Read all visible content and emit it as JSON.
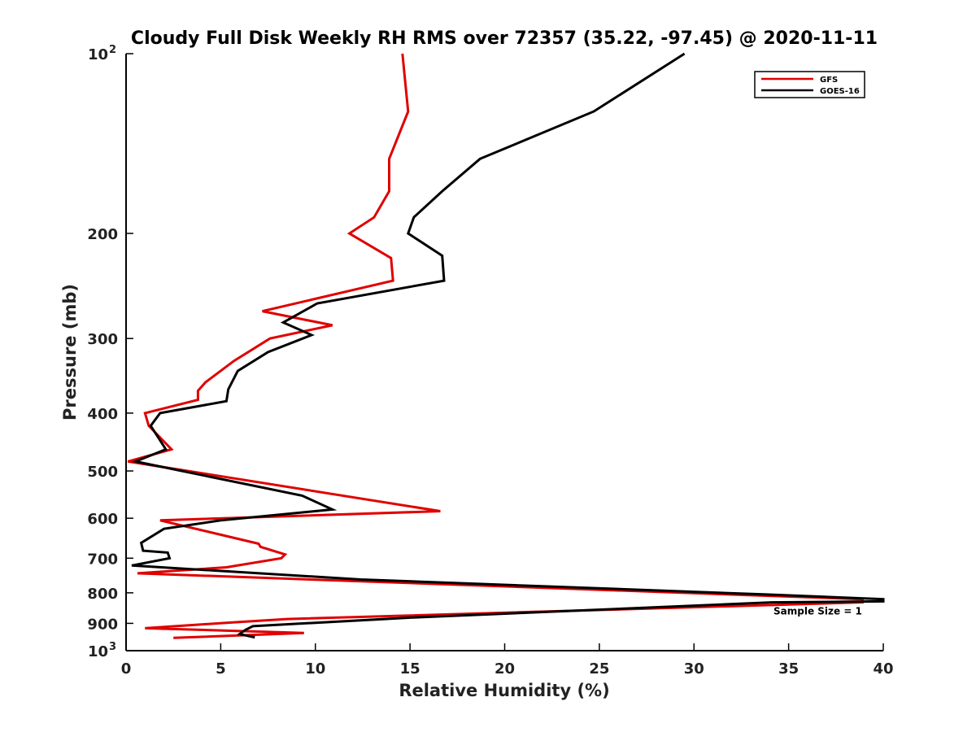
{
  "chart_data": {
    "type": "line",
    "title": "Cloudy Full Disk Weekly RH RMS over 72357 (35.22, -97.45) @ 2020-11-11",
    "xlabel": "Relative Humidity (%)",
    "ylabel": "Pressure (mb)",
    "xlim": [
      0,
      40
    ],
    "ylim": [
      100,
      1000
    ],
    "y_scale": "log",
    "y_reversed": true,
    "grid": false,
    "legend_position": "top-right",
    "x_ticks": [
      "0",
      "5",
      "10",
      "15",
      "20",
      "25",
      "30",
      "35",
      "40"
    ],
    "x_tick_values": [
      0,
      5,
      10,
      15,
      20,
      25,
      30,
      35,
      40
    ],
    "y_ticks": [
      {
        "value": 100,
        "label": "10",
        "exp": "2"
      },
      {
        "value": 200,
        "label": "200",
        "exp": ""
      },
      {
        "value": 300,
        "label": "300",
        "exp": ""
      },
      {
        "value": 400,
        "label": "400",
        "exp": ""
      },
      {
        "value": 500,
        "label": "500",
        "exp": ""
      },
      {
        "value": 600,
        "label": "600",
        "exp": ""
      },
      {
        "value": 700,
        "label": "700",
        "exp": ""
      },
      {
        "value": 800,
        "label": "800",
        "exp": ""
      },
      {
        "value": 900,
        "label": "900",
        "exp": ""
      },
      {
        "value": 1000,
        "label": "10",
        "exp": "3"
      }
    ],
    "series": [
      {
        "name": "GFS",
        "color": "#e00000",
        "points": [
          [
            14.6,
            100
          ],
          [
            14.9,
            125
          ],
          [
            13.9,
            150
          ],
          [
            13.9,
            170
          ],
          [
            13.1,
            188
          ],
          [
            11.8,
            200
          ],
          [
            14.0,
            220
          ],
          [
            14.1,
            240
          ],
          [
            7.2,
            270
          ],
          [
            10.9,
            285
          ],
          [
            7.6,
            300
          ],
          [
            5.7,
            327
          ],
          [
            4.2,
            355
          ],
          [
            3.8,
            367
          ],
          [
            3.8,
            380
          ],
          [
            1.0,
            400
          ],
          [
            1.2,
            420
          ],
          [
            2.4,
            460
          ],
          [
            0.1,
            482
          ],
          [
            16.6,
            584
          ],
          [
            1.8,
            605
          ],
          [
            7.0,
            662
          ],
          [
            7.1,
            670
          ],
          [
            8.4,
            690
          ],
          [
            8.2,
            700
          ],
          [
            5.3,
            725
          ],
          [
            0.6,
            742
          ],
          [
            38.9,
            820
          ],
          [
            38.9,
            830
          ],
          [
            8.5,
            885
          ],
          [
            5.3,
            898
          ],
          [
            1.0,
            917
          ],
          [
            9.4,
            934
          ],
          [
            2.5,
            952
          ]
        ]
      },
      {
        "name": "GOES-16",
        "color": "#000000",
        "points": [
          [
            29.5,
            100
          ],
          [
            24.7,
            125
          ],
          [
            18.7,
            150
          ],
          [
            16.7,
            170
          ],
          [
            15.2,
            188
          ],
          [
            14.9,
            200
          ],
          [
            16.7,
            218
          ],
          [
            16.8,
            240
          ],
          [
            10.1,
            262
          ],
          [
            8.3,
            282
          ],
          [
            9.8,
            296
          ],
          [
            7.5,
            316
          ],
          [
            5.9,
            340
          ],
          [
            5.4,
            365
          ],
          [
            5.3,
            382
          ],
          [
            1.8,
            400
          ],
          [
            1.3,
            420
          ],
          [
            2.1,
            460
          ],
          [
            0.5,
            482
          ],
          [
            9.3,
            550
          ],
          [
            10.9,
            580
          ],
          [
            5.0,
            605
          ],
          [
            2.0,
            625
          ],
          [
            0.8,
            660
          ],
          [
            0.9,
            680
          ],
          [
            2.2,
            685
          ],
          [
            2.3,
            700
          ],
          [
            0.3,
            720
          ],
          [
            12.4,
            760
          ],
          [
            33.8,
            805
          ],
          [
            40.0,
            820
          ],
          [
            40.0,
            827
          ],
          [
            34.1,
            830
          ],
          [
            15.1,
            880
          ],
          [
            6.7,
            910
          ],
          [
            6.3,
            923
          ],
          [
            6.0,
            938
          ],
          [
            6.8,
            950
          ]
        ]
      }
    ],
    "legend_entries": [
      "GFS",
      "GOES-16"
    ],
    "annotations": [
      {
        "text": "Sample Size = 1",
        "x": 34.2,
        "y": 870
      }
    ]
  },
  "colors": {
    "background": "#ffffff",
    "axes": "#000000",
    "gfs": "#e00000",
    "goes": "#000000"
  }
}
